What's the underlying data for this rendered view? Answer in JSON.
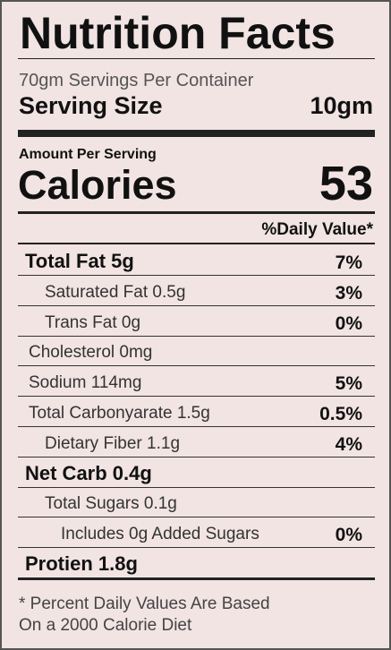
{
  "header": {
    "title": "Nutrition Facts",
    "servings": "70gm Servings Per Container",
    "serving_size_label": "Serving Size",
    "serving_size_value": "10gm"
  },
  "calories": {
    "amount_label": "Amount Per Serving",
    "label": "Calories",
    "value": "53"
  },
  "daily_value_header": "%Daily Value*",
  "rows": [
    {
      "label": "Total Fat 5g",
      "daily_value": "7%"
    },
    {
      "label": "Saturated Fat 0.5g",
      "daily_value": "3%"
    },
    {
      "label": "Trans Fat 0g",
      "daily_value": "0%"
    },
    {
      "label": "Cholesterol 0mg"
    },
    {
      "label": "Sodium 114mg",
      "daily_value": "5%"
    },
    {
      "label": "Total Carbonyarate 1.5g",
      "daily_value": "0.5%"
    },
    {
      "label": "Dietary Fiber 1.1g",
      "daily_value": "4%"
    },
    {
      "label": "Net Carb 0.4g"
    },
    {
      "label": "Total Sugars 0.1g"
    },
    {
      "label": "Includes 0g Added Sugars",
      "daily_value": "0%"
    },
    {
      "label": "Protien 1.8g"
    }
  ],
  "footnote": [
    "* Percent Daily Values Are Based",
    "On a 2000 Calorie Diet"
  ]
}
